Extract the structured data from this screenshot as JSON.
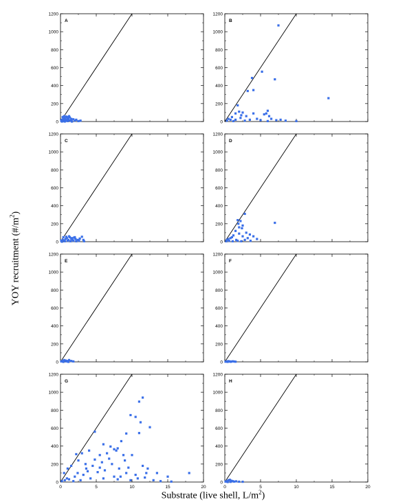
{
  "axes": {
    "ylabel_main": "YOY recruitment (#/m",
    "ylabel_sup": "2",
    "ylabel_close": ")",
    "xlabel_main": "Substrate (live shell, L/m",
    "xlabel_sup": "2",
    "xlabel_close": ")"
  },
  "chart_data": {
    "type": "scatter",
    "xlim": [
      0,
      20
    ],
    "ylim": [
      0,
      1200
    ],
    "xticks": [
      0,
      5,
      10,
      15,
      20
    ],
    "yticks": [
      0,
      200,
      400,
      600,
      800,
      1000,
      1200
    ],
    "marker_color": "#3a6fe8",
    "reference_line": {
      "from": [
        0,
        0
      ],
      "to": [
        10,
        1200
      ]
    },
    "panels": [
      {
        "label": "A",
        "points": [
          [
            0.1,
            10
          ],
          [
            0.2,
            20
          ],
          [
            0.3,
            5
          ],
          [
            0.4,
            30
          ],
          [
            0.5,
            15
          ],
          [
            0.6,
            40
          ],
          [
            0.7,
            25
          ],
          [
            0.8,
            10
          ],
          [
            0.9,
            50
          ],
          [
            1.0,
            20
          ],
          [
            1.1,
            35
          ],
          [
            1.2,
            15
          ],
          [
            1.3,
            45
          ],
          [
            1.4,
            10
          ],
          [
            1.5,
            30
          ],
          [
            0.3,
            50
          ],
          [
            0.5,
            60
          ],
          [
            0.8,
            55
          ],
          [
            1.0,
            40
          ],
          [
            1.2,
            60
          ],
          [
            1.5,
            15
          ],
          [
            1.8,
            25
          ],
          [
            2.0,
            10
          ],
          [
            2.2,
            20
          ],
          [
            2.5,
            5
          ],
          [
            2.8,
            10
          ],
          [
            0.2,
            0
          ],
          [
            0.6,
            0
          ],
          [
            1.0,
            5
          ],
          [
            1.6,
            0
          ]
        ]
      },
      {
        "label": "B",
        "points": [
          [
            7.5,
            1070
          ],
          [
            5.2,
            555
          ],
          [
            3.8,
            485
          ],
          [
            7.0,
            470
          ],
          [
            3.2,
            340
          ],
          [
            4.0,
            350
          ],
          [
            14.5,
            260
          ],
          [
            1.8,
            180
          ],
          [
            2.0,
            110
          ],
          [
            6.0,
            120
          ],
          [
            2.5,
            100
          ],
          [
            4.0,
            90
          ],
          [
            5.5,
            80
          ],
          [
            6.2,
            60
          ],
          [
            3.0,
            60
          ],
          [
            0.5,
            30
          ],
          [
            1.0,
            50
          ],
          [
            1.5,
            20
          ],
          [
            2.2,
            40
          ],
          [
            3.5,
            20
          ],
          [
            4.5,
            30
          ],
          [
            5.0,
            15
          ],
          [
            6.5,
            30
          ],
          [
            7.2,
            15
          ],
          [
            7.8,
            20
          ],
          [
            8.5,
            10
          ],
          [
            10.0,
            5
          ],
          [
            0.3,
            10
          ],
          [
            0.8,
            20
          ],
          [
            1.2,
            5
          ],
          [
            2.8,
            10
          ],
          [
            6.0,
            5
          ],
          [
            5.8,
            90
          ],
          [
            1.5,
            90
          ],
          [
            2.3,
            70
          ]
        ]
      },
      {
        "label": "C",
        "points": [
          [
            0.1,
            10
          ],
          [
            0.3,
            20
          ],
          [
            0.5,
            15
          ],
          [
            0.7,
            30
          ],
          [
            0.9,
            40
          ],
          [
            1.1,
            20
          ],
          [
            1.3,
            50
          ],
          [
            1.5,
            30
          ],
          [
            1.7,
            20
          ],
          [
            1.9,
            45
          ],
          [
            2.1,
            30
          ],
          [
            2.4,
            20
          ],
          [
            2.7,
            35
          ],
          [
            3.0,
            55
          ],
          [
            3.2,
            20
          ],
          [
            0.4,
            50
          ],
          [
            0.8,
            55
          ],
          [
            1.2,
            60
          ],
          [
            1.6,
            40
          ],
          [
            2.0,
            50
          ],
          [
            0.2,
            0
          ],
          [
            0.6,
            5
          ],
          [
            1.0,
            10
          ],
          [
            1.4,
            5
          ],
          [
            1.8,
            10
          ],
          [
            2.2,
            5
          ],
          [
            2.6,
            10
          ],
          [
            3.3,
            5
          ]
        ]
      },
      {
        "label": "D",
        "points": [
          [
            7.0,
            210
          ],
          [
            2.8,
            310
          ],
          [
            1.8,
            240
          ],
          [
            2.2,
            230
          ],
          [
            2.5,
            180
          ],
          [
            2.0,
            160
          ],
          [
            1.5,
            120
          ],
          [
            3.0,
            100
          ],
          [
            3.5,
            80
          ],
          [
            4.0,
            60
          ],
          [
            2.0,
            90
          ],
          [
            1.2,
            70
          ],
          [
            1.0,
            50
          ],
          [
            0.8,
            40
          ],
          [
            0.5,
            30
          ],
          [
            0.3,
            20
          ],
          [
            2.5,
            60
          ],
          [
            3.2,
            40
          ],
          [
            4.5,
            30
          ],
          [
            2.8,
            20
          ],
          [
            1.6,
            20
          ],
          [
            0.2,
            5
          ],
          [
            0.6,
            10
          ],
          [
            1.1,
            5
          ],
          [
            1.8,
            10
          ],
          [
            2.3,
            5
          ],
          [
            3.6,
            10
          ],
          [
            2.4,
            150
          ],
          [
            1.9,
            200
          ]
        ]
      },
      {
        "label": "E",
        "points": [
          [
            0.1,
            5
          ],
          [
            0.3,
            10
          ],
          [
            0.5,
            20
          ],
          [
            0.7,
            15
          ],
          [
            0.9,
            10
          ],
          [
            1.2,
            20
          ],
          [
            1.5,
            10
          ],
          [
            1.8,
            5
          ],
          [
            0.4,
            0
          ],
          [
            0.8,
            5
          ],
          [
            1.1,
            0
          ]
        ]
      },
      {
        "label": "F",
        "points": [
          [
            0.1,
            2
          ],
          [
            0.3,
            5
          ],
          [
            0.5,
            8
          ],
          [
            0.7,
            5
          ],
          [
            0.9,
            3
          ],
          [
            1.1,
            6
          ],
          [
            1.3,
            4
          ],
          [
            1.5,
            2
          ],
          [
            0.4,
            0
          ],
          [
            0.8,
            1
          ]
        ]
      },
      {
        "label": "G",
        "points": [
          [
            11.5,
            940
          ],
          [
            11.0,
            895
          ],
          [
            9.8,
            745
          ],
          [
            10.5,
            725
          ],
          [
            11.2,
            665
          ],
          [
            9.2,
            540
          ],
          [
            12.5,
            610
          ],
          [
            4.8,
            560
          ],
          [
            8.5,
            455
          ],
          [
            11.0,
            545
          ],
          [
            8.0,
            375
          ],
          [
            7.0,
            395
          ],
          [
            7.5,
            365
          ],
          [
            6.0,
            420
          ],
          [
            6.5,
            320
          ],
          [
            5.5,
            300
          ],
          [
            4.0,
            350
          ],
          [
            3.0,
            320
          ],
          [
            2.2,
            310
          ],
          [
            7.8,
            350
          ],
          [
            10.0,
            300
          ],
          [
            8.8,
            300
          ],
          [
            6.8,
            260
          ],
          [
            5.8,
            220
          ],
          [
            4.5,
            180
          ],
          [
            3.5,
            200
          ],
          [
            2.5,
            240
          ],
          [
            1.5,
            180
          ],
          [
            1.0,
            150
          ],
          [
            0.5,
            100
          ],
          [
            7.2,
            200
          ],
          [
            9.0,
            240
          ],
          [
            11.5,
            180
          ],
          [
            9.5,
            160
          ],
          [
            8.2,
            150
          ],
          [
            6.2,
            130
          ],
          [
            5.2,
            110
          ],
          [
            3.8,
            120
          ],
          [
            3.2,
            80
          ],
          [
            2.0,
            60
          ],
          [
            12.0,
            100
          ],
          [
            13.5,
            100
          ],
          [
            10.5,
            80
          ],
          [
            9.2,
            100
          ],
          [
            11.8,
            50
          ],
          [
            7.5,
            60
          ],
          [
            6.0,
            40
          ],
          [
            4.2,
            40
          ],
          [
            2.8,
            20
          ],
          [
            1.2,
            30
          ],
          [
            18.0,
            100
          ],
          [
            15.0,
            60
          ],
          [
            13.0,
            20
          ],
          [
            14.0,
            10
          ],
          [
            15.5,
            5
          ],
          [
            8.0,
            30
          ],
          [
            9.8,
            20
          ],
          [
            0.2,
            10
          ],
          [
            0.6,
            20
          ],
          [
            0.9,
            40
          ],
          [
            1.8,
            10
          ],
          [
            2.4,
            100
          ],
          [
            3.6,
            150
          ],
          [
            4.8,
            250
          ],
          [
            5.5,
            160
          ],
          [
            8.4,
            60
          ],
          [
            10.8,
            40
          ],
          [
            12.2,
            150
          ]
        ]
      },
      {
        "label": "H",
        "points": [
          [
            0.1,
            5
          ],
          [
            0.3,
            10
          ],
          [
            0.5,
            20
          ],
          [
            0.7,
            25
          ],
          [
            0.9,
            15
          ],
          [
            1.1,
            10
          ],
          [
            1.3,
            5
          ],
          [
            1.6,
            8
          ],
          [
            2.0,
            4
          ],
          [
            2.5,
            3
          ],
          [
            0.4,
            0
          ],
          [
            0.8,
            2
          ]
        ]
      }
    ]
  }
}
